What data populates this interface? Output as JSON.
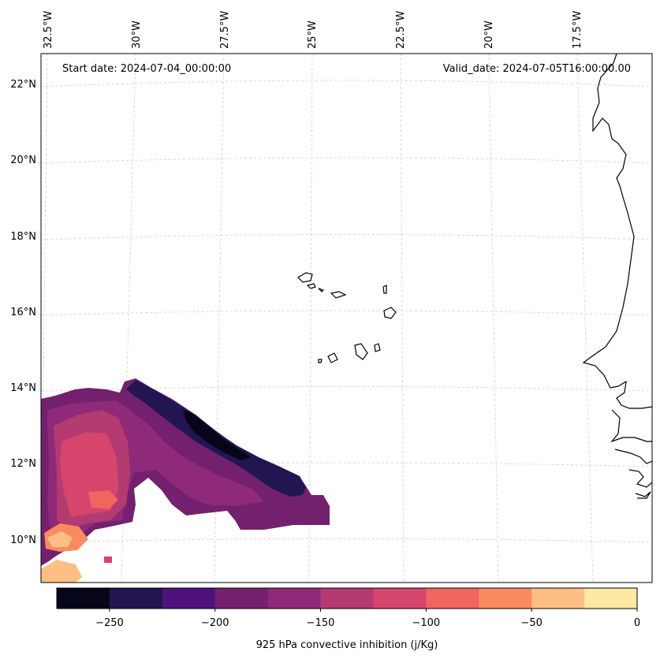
{
  "header": {
    "start_date": "Start date: 2024-07-04_00:00:00",
    "valid_date": "Valid_date: 2024-07-05T16:00:00.00"
  },
  "map": {
    "longitude_labels": [
      "32.5°W",
      "30°W",
      "27.5°W",
      "25°W",
      "22.5°W",
      "20°W",
      "17.5°W"
    ],
    "latitude_labels": [
      "22°N",
      "20°N",
      "18°N",
      "16°N",
      "14°N",
      "12°N",
      "10°N"
    ],
    "gridlines": true,
    "coastline_color": "#000000",
    "gridline_color": "#cccccc"
  },
  "colorbar": {
    "label": "925 hPa convective inhibition (j/Kg)",
    "tick_labels": [
      "−250",
      "−200",
      "−150",
      "−100",
      "−50",
      "0"
    ],
    "levels": [
      -275,
      -250,
      -225,
      -200,
      -175,
      -150,
      -125,
      -100,
      -75,
      -50,
      -25,
      0
    ],
    "colors": [
      "#06051a",
      "#231551",
      "#4f127b",
      "#73206f",
      "#8e2a78",
      "#b33b72",
      "#d6456c",
      "#f06560",
      "#fa8b60",
      "#febf84",
      "#fde8a4"
    ]
  }
}
